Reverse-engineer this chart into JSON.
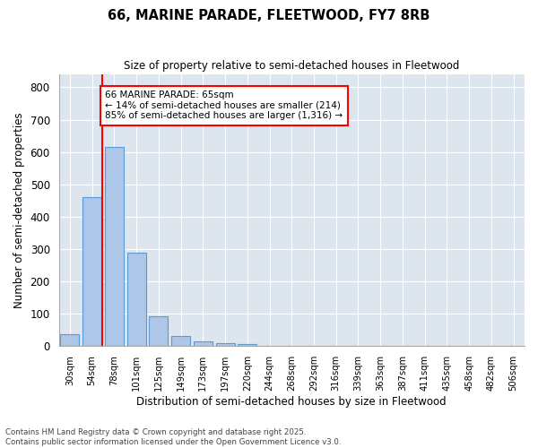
{
  "title1": "66, MARINE PARADE, FLEETWOOD, FY7 8RB",
  "title2": "Size of property relative to semi-detached houses in Fleetwood",
  "xlabel": "Distribution of semi-detached houses by size in Fleetwood",
  "ylabel": "Number of semi-detached properties",
  "categories": [
    "30sqm",
    "54sqm",
    "78sqm",
    "101sqm",
    "125sqm",
    "149sqm",
    "173sqm",
    "197sqm",
    "220sqm",
    "244sqm",
    "268sqm",
    "292sqm",
    "316sqm",
    "339sqm",
    "363sqm",
    "387sqm",
    "411sqm",
    "435sqm",
    "458sqm",
    "482sqm",
    "506sqm"
  ],
  "values": [
    38,
    460,
    617,
    289,
    93,
    32,
    15,
    10,
    6,
    0,
    0,
    0,
    0,
    0,
    0,
    0,
    0,
    0,
    0,
    0,
    0
  ],
  "bar_color": "#aec6e8",
  "bar_edge_color": "#5b9bd5",
  "vline_color": "red",
  "vline_x_index": 1.5,
  "annotation_title": "66 MARINE PARADE: 65sqm",
  "annotation_line1": "← 14% of semi-detached houses are smaller (214)",
  "annotation_line2": "85% of semi-detached houses are larger (1,316) →",
  "annotation_box_color": "white",
  "annotation_box_edge": "red",
  "ylim": [
    0,
    840
  ],
  "yticks": [
    0,
    100,
    200,
    300,
    400,
    500,
    600,
    700,
    800
  ],
  "bg_color": "#dde5ef",
  "grid_color": "white",
  "footer1": "Contains HM Land Registry data © Crown copyright and database right 2025.",
  "footer2": "Contains public sector information licensed under the Open Government Licence v3.0."
}
